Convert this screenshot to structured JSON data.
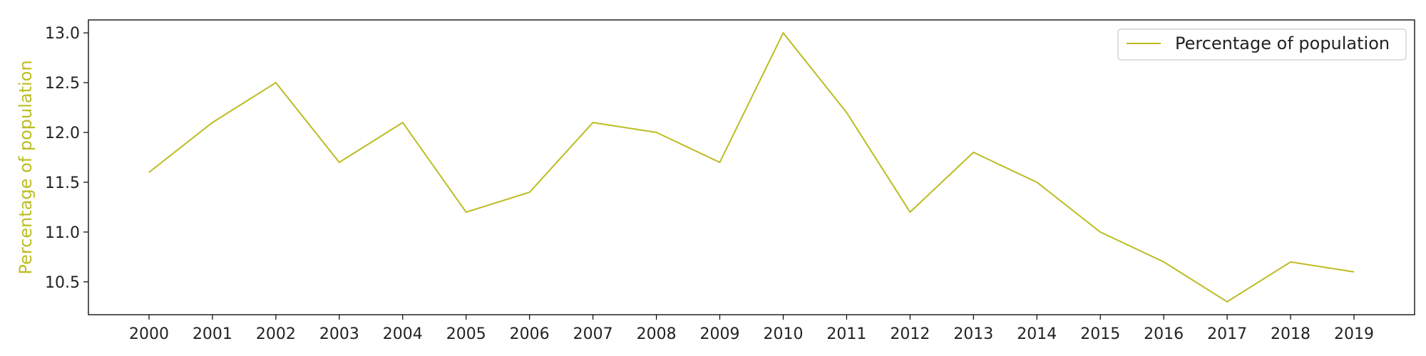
{
  "chart_data": {
    "type": "line",
    "x": [
      "2000",
      "2001",
      "2002",
      "2003",
      "2004",
      "2005",
      "2006",
      "2007",
      "2008",
      "2009",
      "2010",
      "2011",
      "2012",
      "2013",
      "2014",
      "2015",
      "2016",
      "2017",
      "2018",
      "2019"
    ],
    "series": [
      {
        "name": "Percentage of population",
        "color": "#bcbd22",
        "values": [
          11.6,
          12.1,
          12.5,
          11.7,
          12.1,
          11.2,
          11.4,
          12.1,
          12.0,
          11.7,
          13.0,
          12.2,
          11.2,
          11.8,
          11.5,
          11.0,
          10.7,
          10.3,
          10.7,
          10.6
        ]
      }
    ],
    "ylabel": "Percentage of population",
    "ylabel_color": "#bcbd22",
    "yticks": [
      "10.5",
      "11.0",
      "11.5",
      "12.0",
      "12.5",
      "13.0"
    ],
    "ylim": [
      10.17,
      13.13
    ],
    "grid": false,
    "legend_position": "top-right"
  }
}
